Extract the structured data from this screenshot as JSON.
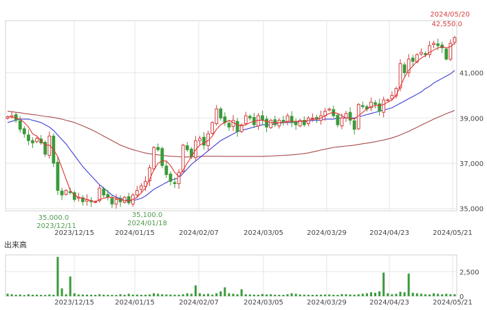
{
  "chart_data": [
    {
      "type": "candlestick",
      "title": "",
      "xlabel": "",
      "ylabel": "",
      "ylim": [
        34900,
        43300
      ],
      "y_ticks": [
        35000,
        37000,
        39000,
        41000
      ],
      "y_tick_labels": [
        "35,000",
        "37,000",
        "39,000",
        "41,000"
      ],
      "x_ticks": [
        "2023/12/15",
        "2024/01/15",
        "2024/02/07",
        "2024/03/05",
        "2024/03/29",
        "2024/04/23",
        "2024/05/21"
      ],
      "grid": true,
      "colors": {
        "up": "#d33c3c",
        "down": "#3a9a3a",
        "ma_short": "#e03030",
        "ma_mid": "#3a3ad8",
        "ma_long": "#a84a4a",
        "grid": "#e6e6e6",
        "axis_text": "#444444",
        "low_annotation": "#4f9a4f",
        "high_annotation": "#d84040"
      },
      "close_values": [
        39050,
        39100,
        38900,
        38500,
        38300,
        38000,
        37900,
        38100,
        37900,
        37400,
        38200,
        37000,
        35800,
        35600,
        35800,
        35700,
        35400,
        35500,
        35300,
        35400,
        35300,
        35300,
        35900,
        35600,
        35500,
        35200,
        35400,
        35300,
        35500,
        35250,
        35600,
        35800,
        36000,
        36200,
        36800,
        37700,
        37600,
        36900,
        36500,
        36200,
        36100,
        36600,
        37800,
        37600,
        37300,
        38000,
        38100,
        37800,
        38300,
        38800,
        39400,
        39000,
        38800,
        38600,
        38900,
        38400,
        38700,
        39100,
        39000,
        38700,
        39100,
        38900,
        38600,
        38900,
        38700,
        38900,
        38800,
        39100,
        38800,
        38700,
        38900,
        38700,
        39000,
        39000,
        38950,
        39100,
        39300,
        39400,
        39100,
        38700,
        39000,
        39200,
        38900,
        38500,
        39600,
        39500,
        39400,
        39700,
        39600,
        39300,
        39800,
        39800,
        40000,
        40300,
        41400,
        41000,
        41600,
        41500,
        41800,
        41900,
        41800,
        42200,
        42300,
        42200,
        42100,
        41600,
        42300,
        42550
      ],
      "series": [
        {
          "name": "",
          "kind": "ma_short",
          "values": [
            39050,
            39050,
            39000,
            38950,
            38800,
            38600,
            38300,
            38200,
            38000,
            37800,
            37800,
            37600,
            37300,
            36800,
            36300,
            35800,
            35600,
            35500,
            35450,
            35400,
            35350,
            35300,
            35400,
            35450,
            35500,
            35500,
            35450,
            35400,
            35350,
            35350,
            35400,
            35500,
            35700,
            35900,
            36300,
            36700,
            37000,
            37100,
            37100,
            36900,
            36600,
            36400,
            36700,
            37000,
            37300,
            37600,
            37800,
            37900,
            38000,
            38200,
            38500,
            38700,
            38800,
            38900,
            38800,
            38700,
            38650,
            38700,
            38800,
            38850,
            38900,
            38900,
            38850,
            38800,
            38800,
            38800,
            38800,
            38850,
            38850,
            38850,
            38850,
            38850,
            38900,
            38950,
            38950,
            39000,
            39100,
            39200,
            39250,
            39200,
            39100,
            39000,
            39000,
            38950,
            39100,
            39250,
            39400,
            39500,
            39550,
            39550,
            39600,
            39700,
            39800,
            40000,
            40400,
            40800,
            41100,
            41300,
            41500,
            41650,
            41750,
            41900,
            42000,
            42100,
            42150,
            42100,
            42150,
            42300
          ]
        },
        {
          "name": "",
          "kind": "ma_mid",
          "values": [
            38800,
            38850,
            38900,
            38950,
            38950,
            38950,
            38900,
            38850,
            38800,
            38700,
            38600,
            38450,
            38250,
            38050,
            37850,
            37600,
            37350,
            37100,
            36850,
            36650,
            36450,
            36250,
            36050,
            35900,
            35750,
            35600,
            35500,
            35450,
            35400,
            35350,
            35350,
            35400,
            35450,
            35550,
            35700,
            35850,
            35950,
            36050,
            36150,
            36250,
            36300,
            36350,
            36550,
            36750,
            36950,
            37100,
            37250,
            37400,
            37550,
            37700,
            37850,
            38000,
            38100,
            38200,
            38300,
            38400,
            38450,
            38500,
            38550,
            38600,
            38650,
            38700,
            38700,
            38700,
            38750,
            38750,
            38800,
            38800,
            38800,
            38800,
            38850,
            38850,
            38850,
            38900,
            38900,
            38900,
            38950,
            38950,
            38950,
            39000,
            39000,
            39000,
            39000,
            39000,
            39050,
            39100,
            39150,
            39200,
            39250,
            39300,
            39350,
            39400,
            39450,
            39550,
            39650,
            39750,
            39850,
            39950,
            40050,
            40150,
            40300,
            40400,
            40550,
            40650,
            40750,
            40850,
            40950,
            41100
          ]
        },
        {
          "name": "",
          "kind": "ma_long",
          "values": [
            39300,
            39280,
            39250,
            39230,
            39200,
            39180,
            39150,
            39130,
            39100,
            39070,
            39050,
            39020,
            38990,
            38950,
            38900,
            38850,
            38800,
            38730,
            38650,
            38570,
            38490,
            38400,
            38300,
            38200,
            38100,
            38000,
            37900,
            37800,
            37730,
            37660,
            37600,
            37550,
            37500,
            37450,
            37420,
            37400,
            37370,
            37350,
            37330,
            37310,
            37300,
            37290,
            37280,
            37280,
            37280,
            37290,
            37300,
            37310,
            37310,
            37310,
            37310,
            37310,
            37300,
            37300,
            37300,
            37300,
            37300,
            37300,
            37300,
            37300,
            37300,
            37300,
            37310,
            37320,
            37330,
            37340,
            37350,
            37360,
            37370,
            37390,
            37410,
            37430,
            37460,
            37500,
            37540,
            37580,
            37620,
            37660,
            37700,
            37720,
            37740,
            37760,
            37780,
            37800,
            37830,
            37860,
            37890,
            37920,
            37950,
            37990,
            38030,
            38070,
            38120,
            38180,
            38250,
            38330,
            38410,
            38500,
            38590,
            38680,
            38770,
            38860,
            38950,
            39030,
            39110,
            39190,
            39260,
            39330
          ]
        }
      ],
      "annotations": [
        {
          "price": "35,000.0",
          "date": "2023/12/11"
        },
        {
          "price": "35,100.0",
          "date": "2024/01/18"
        },
        {
          "price": "42,550.0",
          "date": "2024/05/20"
        }
      ]
    },
    {
      "type": "bar",
      "title": "出来高",
      "xlabel": "",
      "ylabel": "",
      "ylim": [
        0,
        4200
      ],
      "y_ticks": [
        0,
        2500
      ],
      "y_tick_labels": [
        "0",
        "2,500"
      ],
      "x_ticks": [
        "2023/12/15",
        "2024/01/15",
        "2024/02/07",
        "2024/03/05",
        "2024/03/29",
        "2024/04/23",
        "2024/05/21"
      ],
      "grid": true,
      "colors": {
        "bar": "#3a9a3a",
        "grid": "#e6e6e6"
      },
      "values": [
        250,
        200,
        150,
        180,
        120,
        200,
        150,
        160,
        140,
        130,
        180,
        150,
        4000,
        800,
        200,
        2000,
        300,
        180,
        170,
        160,
        150,
        140,
        200,
        160,
        150,
        140,
        130,
        200,
        150,
        250,
        160,
        170,
        140,
        150,
        180,
        300,
        250,
        200,
        180,
        170,
        160,
        150,
        200,
        300,
        250,
        1100,
        300,
        200,
        250,
        160,
        300,
        500,
        900,
        300,
        250,
        200,
        700,
        200,
        180,
        160,
        150,
        220,
        180,
        200,
        160,
        150,
        140,
        200,
        300,
        250,
        180,
        160,
        150,
        140,
        150,
        160,
        170,
        180,
        150,
        140,
        220,
        200,
        180,
        160,
        200,
        250,
        300,
        400,
        350,
        500,
        2400,
        300,
        200,
        250,
        450,
        400,
        2300,
        350,
        300,
        250,
        200,
        180,
        300,
        250,
        200,
        250,
        200,
        200
      ]
    }
  ]
}
